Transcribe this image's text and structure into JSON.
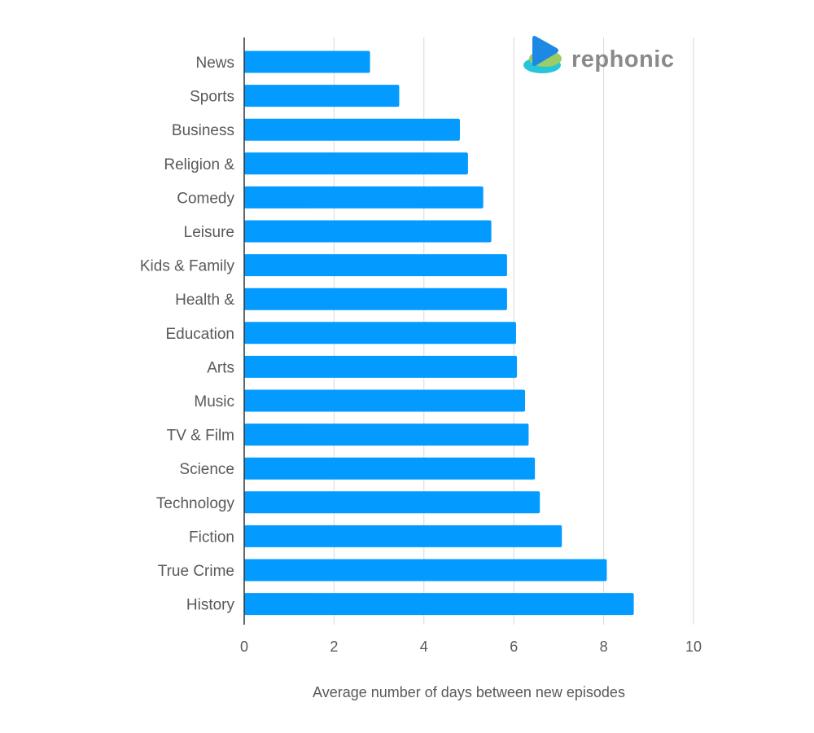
{
  "chart_data": {
    "type": "bar",
    "orientation": "horizontal",
    "categories": [
      "News",
      "Sports",
      "Business",
      "Religion &",
      "Comedy",
      "Leisure",
      "Kids & Family",
      "Health &",
      "Education",
      "Arts",
      "Music",
      "TV & Film",
      "Science",
      "Technology",
      "Fiction",
      "True Crime",
      "History"
    ],
    "values": [
      2.8,
      3.45,
      4.8,
      4.98,
      5.32,
      5.5,
      5.85,
      5.85,
      6.05,
      6.07,
      6.25,
      6.33,
      6.47,
      6.58,
      7.07,
      8.07,
      8.67
    ],
    "xlabel": "Average number of days between new episodes",
    "ylabel": "",
    "xlim": [
      0,
      10
    ],
    "xticks": [
      "0",
      "2",
      "4",
      "6",
      "8",
      "10"
    ],
    "grid": true,
    "bar_color": "#039BFF",
    "grid_color": "#D9D9D9"
  },
  "brand": {
    "name": "rephonic",
    "icon": "play-logo-icon"
  }
}
